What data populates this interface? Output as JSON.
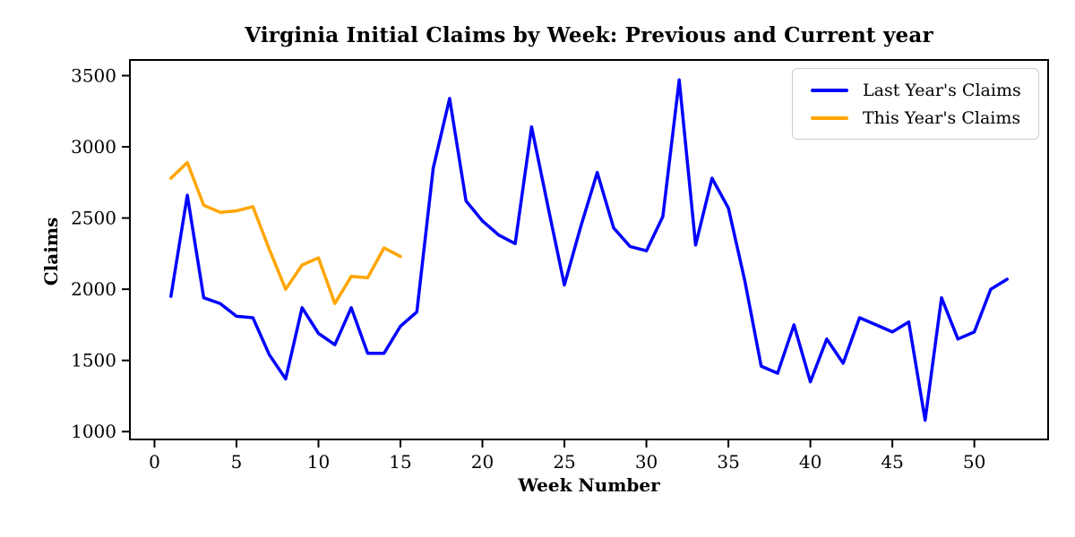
{
  "title": "Virginia Initial Claims by Week: Previous and Current year",
  "axes": {
    "xlabel": "Week Number",
    "ylabel": "Claims"
  },
  "legend": {
    "entries": [
      {
        "label": "Last Year's Claims",
        "color": "#0000ff"
      },
      {
        "label": "This Year's Claims",
        "color": "#ffa500"
      }
    ]
  },
  "chart_data": {
    "type": "line",
    "title": "Virginia Initial Claims by Week: Previous and Current year",
    "xlabel": "Week Number",
    "ylabel": "Claims",
    "x": [
      1,
      2,
      3,
      4,
      5,
      6,
      7,
      8,
      9,
      10,
      11,
      12,
      13,
      14,
      15,
      16,
      17,
      18,
      19,
      20,
      21,
      22,
      23,
      24,
      25,
      26,
      27,
      28,
      29,
      30,
      31,
      32,
      33,
      34,
      35,
      36,
      37,
      38,
      39,
      40,
      41,
      42,
      43,
      44,
      45,
      46,
      47,
      48,
      49,
      50,
      51,
      52
    ],
    "series": [
      {
        "name": "Last Year's Claims",
        "color": "#0000ff",
        "values": [
          1950,
          2660,
          1940,
          1900,
          1810,
          1800,
          1540,
          1370,
          1870,
          1690,
          1610,
          1870,
          1550,
          1550,
          1740,
          1840,
          2850,
          3340,
          2620,
          2480,
          2380,
          2320,
          3140,
          2580,
          2030,
          2440,
          2820,
          2430,
          2300,
          2270,
          2510,
          3470,
          2310,
          2780,
          2570,
          2060,
          1460,
          1410,
          1750,
          1350,
          1650,
          1480,
          1800,
          1750,
          1700,
          1770,
          1080,
          1940,
          1650,
          1700,
          2000,
          2070
        ]
      },
      {
        "name": "This Year's Claims",
        "color": "#ffa500",
        "values": [
          2780,
          2890,
          2590,
          2540,
          2550,
          2580,
          2280,
          2000,
          2170,
          2220,
          1900,
          2090,
          2080,
          2290,
          2230
        ]
      }
    ],
    "xticks": [
      0,
      5,
      10,
      15,
      20,
      25,
      30,
      35,
      40,
      45,
      50
    ],
    "yticks": [
      1000,
      1500,
      2000,
      2500,
      3000,
      3500
    ],
    "xlim": [
      -1.5,
      54.5
    ],
    "ylim": [
      945,
      3610
    ],
    "grid": false,
    "legend_position": "upper right",
    "line_width": 3.5
  }
}
